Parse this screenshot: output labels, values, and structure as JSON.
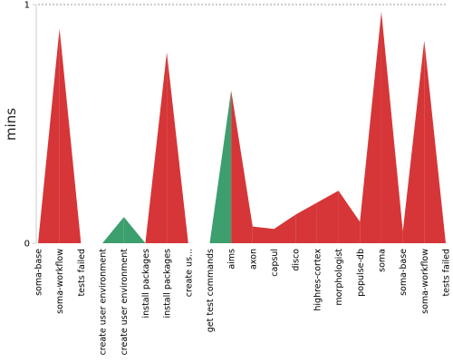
{
  "chart_data": {
    "type": "area",
    "ylabel": "mins",
    "ylim": [
      0,
      1
    ],
    "yticks": [
      0,
      1
    ],
    "grid": {
      "top_dashed": true
    },
    "colors": {
      "red": "#d63638",
      "green": "#3d9e6e"
    },
    "categories": [
      "soma-base",
      "soma-workflow",
      "tests failed",
      "create user environment",
      "create user environment",
      "install packages",
      "install packages",
      "create us...",
      "get test commands",
      "aims",
      "axon",
      "capsul",
      "disco",
      "highres-cortex",
      "morphologist",
      "populse-db",
      "soma",
      "soma-base",
      "soma-workflow",
      "tests failed"
    ],
    "values": [
      0.0,
      0.9,
      0.0,
      0.0,
      0.11,
      0.0,
      0.8,
      0.0,
      0.0,
      0.64,
      0.07,
      0.06,
      0.12,
      0.17,
      0.22,
      0.09,
      0.97,
      0.05,
      0.85,
      0.0
    ],
    "segment_colors": [
      "red",
      "red",
      "green",
      "green",
      "green",
      "red",
      "red",
      "green",
      "green",
      "red",
      "red",
      "red",
      "red",
      "red",
      "red",
      "red",
      "red",
      "red",
      "red"
    ]
  }
}
